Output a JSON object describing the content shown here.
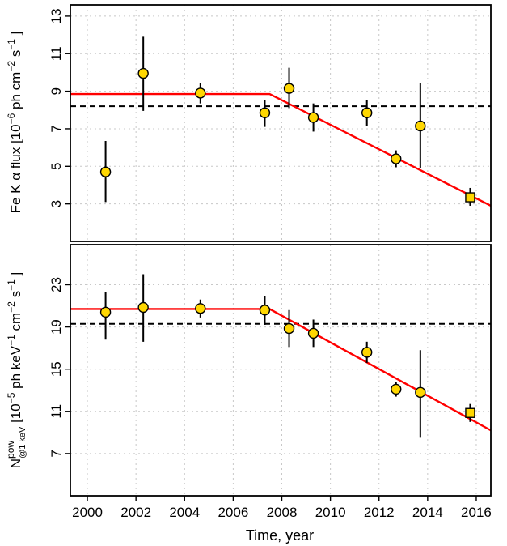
{
  "chart_data": [
    {
      "type": "scatter",
      "ylabel_main": "Fe K α flux [10",
      "ylabel_exp1": "−6",
      "ylabel_mid": " ph cm",
      "ylabel_exp2": "−2",
      "ylabel_tail1": " s",
      "ylabel_exp3": "−1",
      "ylabel_tail2": " ]",
      "xlim": [
        1999.3,
        2016.6
      ],
      "ylim": [
        1.0,
        13.6
      ],
      "yticks": [
        "3",
        "5",
        "7",
        "9",
        "11",
        "13"
      ],
      "ytick_values": [
        3,
        5,
        7,
        9,
        11,
        13
      ],
      "grid": true,
      "points": [
        {
          "x": 2000.75,
          "y": 4.7,
          "ylo": 3.1,
          "yhi": 6.35,
          "marker": "circle"
        },
        {
          "x": 2002.3,
          "y": 9.95,
          "ylo": 7.95,
          "yhi": 11.9,
          "marker": "circle"
        },
        {
          "x": 2004.65,
          "y": 8.9,
          "ylo": 8.35,
          "yhi": 9.45,
          "marker": "circle"
        },
        {
          "x": 2007.3,
          "y": 7.85,
          "ylo": 7.1,
          "yhi": 8.55,
          "marker": "circle"
        },
        {
          "x": 2008.3,
          "y": 9.15,
          "ylo": 8.1,
          "yhi": 10.25,
          "marker": "circle"
        },
        {
          "x": 2009.3,
          "y": 7.6,
          "ylo": 6.85,
          "yhi": 8.35,
          "marker": "circle"
        },
        {
          "x": 2011.5,
          "y": 7.85,
          "ylo": 7.15,
          "yhi": 8.55,
          "marker": "circle"
        },
        {
          "x": 2012.7,
          "y": 5.4,
          "ylo": 4.95,
          "yhi": 5.85,
          "marker": "circle"
        },
        {
          "x": 2013.7,
          "y": 7.15,
          "ylo": 4.9,
          "yhi": 9.45,
          "marker": "circle"
        },
        {
          "x": 2015.75,
          "y": 3.35,
          "ylo": 2.9,
          "yhi": 3.85,
          "marker": "square"
        }
      ],
      "model_line": [
        [
          1999.3,
          8.85
        ],
        [
          2007.5,
          8.85
        ],
        [
          2016.6,
          2.9
        ]
      ],
      "mean_line": 8.2,
      "colors": {
        "point": "#FFD700",
        "model": "#FF0000",
        "mean": "#000000"
      }
    },
    {
      "type": "scatter",
      "ylabel_n": "N",
      "ylabel_sup": "pow",
      "ylabel_sub": "@1 keV",
      "ylabel_bracket": " [10",
      "ylabel_exp1": "−5",
      "ylabel_mid": " ph keV",
      "ylabel_exp2": "−1",
      "ylabel_tail1": " cm",
      "ylabel_exp3": "−2",
      "ylabel_tail2": " s",
      "ylabel_exp4": "−1",
      "ylabel_tail3": " ]",
      "xlabel": "Time, year",
      "xlim": [
        1999.3,
        2016.6
      ],
      "ylim": [
        3.0,
        26.8
      ],
      "xticks": [
        "2000",
        "2002",
        "2004",
        "2006",
        "2008",
        "2010",
        "2012",
        "2014",
        "2016"
      ],
      "xtick_values": [
        2000,
        2002,
        2004,
        2006,
        2008,
        2010,
        2012,
        2014,
        2016
      ],
      "yticks": [
        "7",
        "11",
        "15",
        "19",
        "23"
      ],
      "ytick_values": [
        7,
        11,
        15,
        19,
        23
      ],
      "grid": true,
      "points": [
        {
          "x": 2000.75,
          "y": 20.4,
          "ylo": 17.8,
          "yhi": 22.3,
          "marker": "circle"
        },
        {
          "x": 2002.3,
          "y": 20.85,
          "ylo": 17.6,
          "yhi": 24.0,
          "marker": "circle"
        },
        {
          "x": 2004.65,
          "y": 20.75,
          "ylo": 19.9,
          "yhi": 21.6,
          "marker": "circle"
        },
        {
          "x": 2007.3,
          "y": 20.6,
          "ylo": 19.2,
          "yhi": 21.9,
          "marker": "circle"
        },
        {
          "x": 2008.3,
          "y": 18.85,
          "ylo": 17.1,
          "yhi": 20.6,
          "marker": "circle"
        },
        {
          "x": 2009.3,
          "y": 18.4,
          "ylo": 17.1,
          "yhi": 19.7,
          "marker": "circle"
        },
        {
          "x": 2011.5,
          "y": 16.6,
          "ylo": 15.6,
          "yhi": 17.6,
          "marker": "circle"
        },
        {
          "x": 2012.7,
          "y": 13.1,
          "ylo": 12.4,
          "yhi": 13.8,
          "marker": "circle"
        },
        {
          "x": 2013.7,
          "y": 12.8,
          "ylo": 8.5,
          "yhi": 16.8,
          "marker": "circle"
        },
        {
          "x": 2015.75,
          "y": 10.85,
          "ylo": 10.0,
          "yhi": 11.7,
          "marker": "square"
        }
      ],
      "model_line": [
        [
          1999.3,
          20.7
        ],
        [
          2007.5,
          20.7
        ],
        [
          2016.6,
          9.2
        ]
      ],
      "mean_line": 19.3,
      "colors": {
        "point": "#FFD700",
        "model": "#FF0000",
        "mean": "#000000"
      }
    }
  ]
}
